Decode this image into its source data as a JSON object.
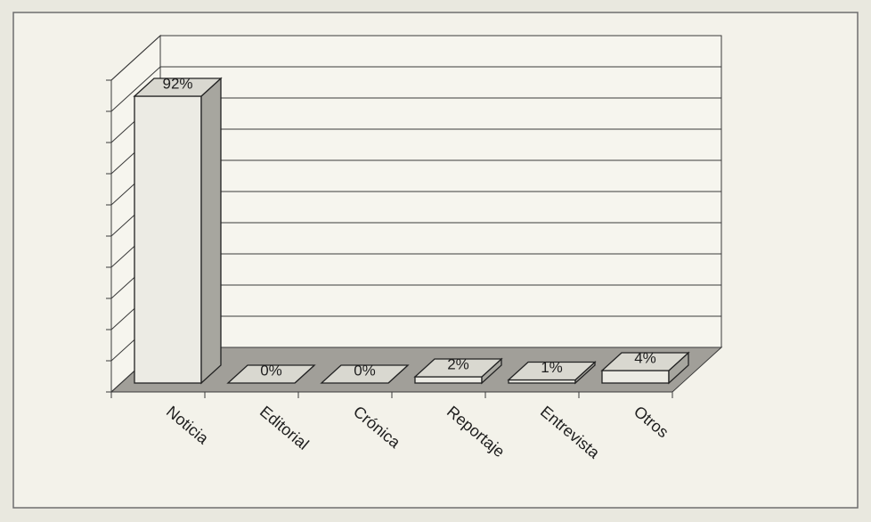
{
  "chart_data": {
    "type": "bar",
    "three_d": true,
    "categories": [
      "Noticia",
      "Editorial",
      "Crónica",
      "Reportaje",
      "Entrevista",
      "Otros"
    ],
    "values": [
      92,
      0,
      0,
      2,
      1,
      4
    ],
    "data_labels": [
      "92%",
      "0%",
      "0%",
      "2%",
      "1%",
      "4%"
    ],
    "ylim": [
      0,
      100
    ],
    "grid": true
  },
  "colors": {
    "page": "#e9e8df",
    "panel": "#f3f2ea",
    "frame": "#6e6e6e",
    "wall": "#f6f5ee",
    "floor": "#a19f99",
    "grid": "#3a3a3a",
    "bar_front": "#ecebe4",
    "bar_side": "#a7a69f",
    "bar_top": "#d9d8d0",
    "outline": "#222222"
  }
}
